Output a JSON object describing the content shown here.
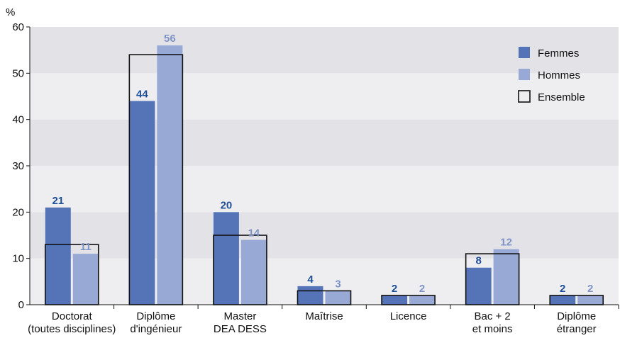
{
  "chart_data": {
    "type": "bar",
    "ylabel": "%",
    "ylim": [
      0,
      60
    ],
    "yticks": [
      0,
      10,
      20,
      30,
      40,
      50,
      60
    ],
    "grid": "alternating horizontal bands",
    "legend_position": "top-right",
    "categories": [
      [
        "Doctorat",
        "(toutes disciplines)"
      ],
      [
        "Diplôme",
        "d'ingénieur"
      ],
      [
        "Master",
        "DEA DESS"
      ],
      [
        "Maîtrise"
      ],
      [
        "Licence"
      ],
      [
        "Bac + 2",
        "et moins"
      ],
      [
        "Diplôme",
        "étranger"
      ]
    ],
    "series": [
      {
        "name": "Femmes",
        "values": [
          21,
          44,
          20,
          4,
          2,
          8,
          2
        ],
        "color": "#5574b8",
        "label_color": "#1f4f96"
      },
      {
        "name": "Hommes",
        "values": [
          11,
          56,
          14,
          3,
          2,
          12,
          2
        ],
        "color": "#97a9d4",
        "label_color": "#8094c8"
      },
      {
        "name": "Ensemble",
        "values": [
          13,
          54,
          15,
          3,
          2,
          11,
          2
        ],
        "style": "outline",
        "color": "#111111"
      }
    ]
  }
}
